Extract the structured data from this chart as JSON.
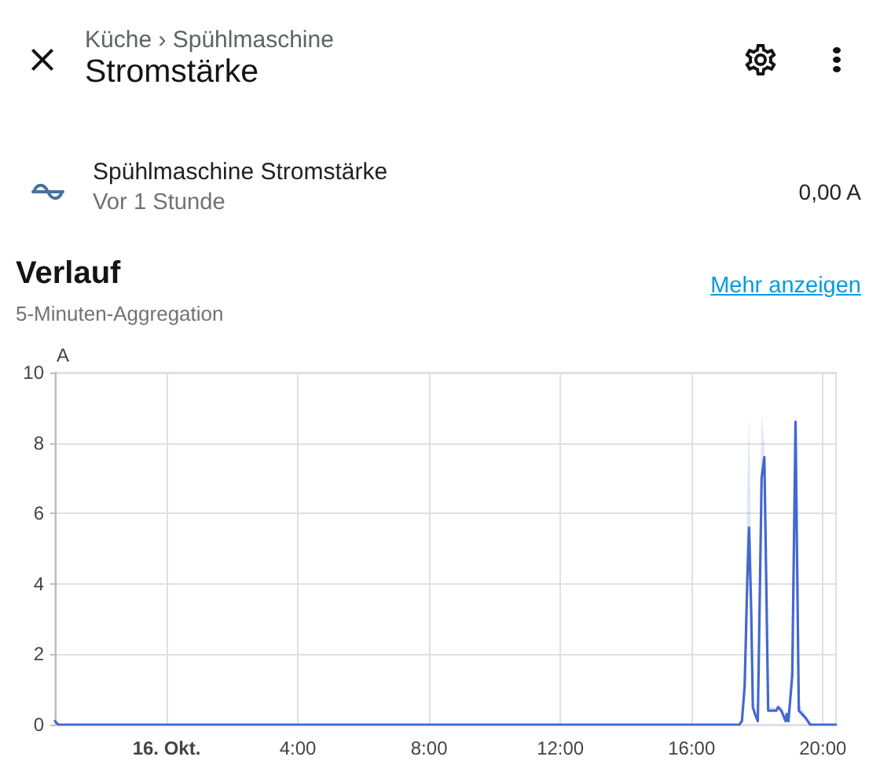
{
  "chart_data": {
    "type": "line",
    "title": "Verlauf",
    "subtitle": "5-Minuten-Aggregation",
    "ylabel": "A",
    "annotations": [
      "Küche › Spühlmaschine",
      "Stromstärke",
      "Spühlmaschine Stromstärke",
      "Vor 1 Stunde",
      "0,00 A",
      "Mehr anzeigen"
    ],
    "x": [
      "--10-15T20:36",
      "--10-15T20:42",
      "--10-16T17:27",
      "--10-16T17:32",
      "--10-16T17:37",
      "--10-16T17:42",
      "--10-16T17:45",
      "--10-16T17:49",
      "--10-16T17:52",
      "--10-16T17:56",
      "--10-16T18:01",
      "--10-16T18:06",
      "--10-16T18:08",
      "--10-16T18:13",
      "--10-16T18:17",
      "--10-16T18:20",
      "--10-16T18:35",
      "--10-16T18:38",
      "--10-16T18:44",
      "--10-16T18:52",
      "--10-16T18:54",
      "--10-16T18:57",
      "--10-16T19:04",
      "--10-16T19:10",
      "--10-16T19:16",
      "--10-16T19:28",
      "--10-16T19:37",
      "--10-16T20:24"
    ],
    "series": [
      {
        "color": "#4269d0",
        "values": [
          0.1,
          0,
          0,
          0.1,
          1.1,
          4.2,
          5.6,
          3.2,
          0.5,
          0.3,
          0.1,
          5.0,
          7.0,
          7.6,
          3.5,
          0.4,
          0.4,
          0.5,
          0.4,
          0.1,
          0.3,
          0.1,
          1.4,
          8.6,
          0.4,
          0.2,
          0,
          0
        ],
        "lower": [
          0.1,
          0,
          0,
          0.1,
          1.1,
          4.2,
          5.6,
          3.2,
          0.5,
          0.3,
          0.1,
          5.0,
          7.0,
          7.6,
          3.5,
          0.4,
          0.4,
          0.5,
          0.4,
          0.1,
          0.3,
          0.1,
          1.4,
          8.6,
          0.4,
          0.2,
          0,
          0
        ],
        "upper": [
          0.1,
          0,
          0,
          0.2,
          2.0,
          7.0,
          8.8,
          5.0,
          0.6,
          0.3,
          0.2,
          7.0,
          8.8,
          8.0,
          4.0,
          0.5,
          0.5,
          0.6,
          0.5,
          0.3,
          0.4,
          0.3,
          2.0,
          8.7,
          0.6,
          0.3,
          0,
          0
        ]
      }
    ],
    "xlim": [
      "--10-15T20:36",
      "--10-16T20:24"
    ],
    "xticks": [
      {
        "value": "--10-16",
        "label": "16. Okt."
      },
      {
        "value": "--10-16T04:00",
        "label": "4:00"
      },
      {
        "value": "--10-16T08:00",
        "label": "8:00"
      },
      {
        "value": "--10-16T12:00",
        "label": "12:00"
      },
      {
        "value": "--10-16T16:00",
        "label": "16:00"
      },
      {
        "value": "--10-16T20:00",
        "label": "20:00"
      }
    ],
    "ylim": [
      0,
      10
    ],
    "yticks": [
      0,
      2,
      4,
      6,
      8,
      10
    ],
    "grid": true
  }
}
